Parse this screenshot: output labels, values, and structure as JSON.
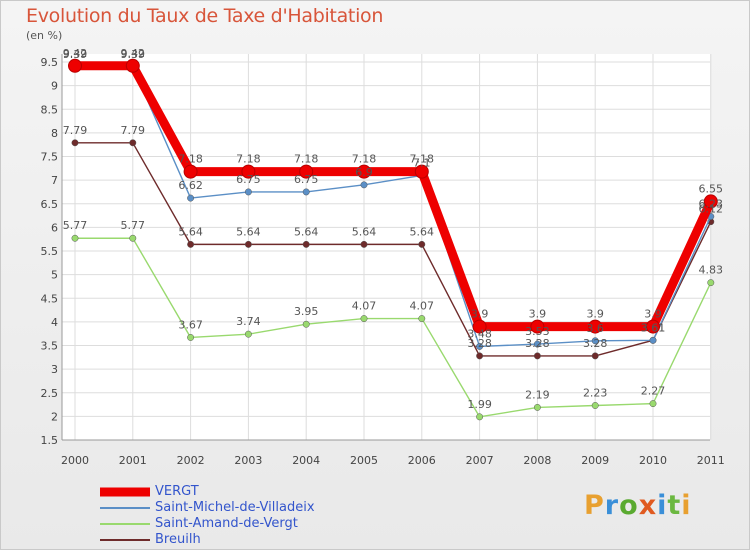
{
  "title": "Evolution du Taux de Taxe d'Habitation",
  "unit_label": "(en %)",
  "logo_text": "Proxiti",
  "chart_data": {
    "type": "line",
    "title": "Evolution du Taux de Taxe d'Habitation",
    "ylabel": "(en %)",
    "xlabel": "",
    "x": [
      "2000",
      "2001",
      "2002",
      "2003",
      "2004",
      "2005",
      "2006",
      "2007",
      "2008",
      "2009",
      "2010",
      "2011"
    ],
    "ylim": [
      1.5,
      9.5
    ],
    "yticks": [
      "1.5",
      "2",
      "2.5",
      "3",
      "3.5",
      "4",
      "4.5",
      "5",
      "5.5",
      "6",
      "6.5",
      "7",
      "7.5",
      "8",
      "8.5",
      "9",
      "9.5"
    ],
    "grid": true,
    "legend_position": "bottom-left",
    "series": [
      {
        "name": "VERGT",
        "color": "#ee0000",
        "values": [
          9.42,
          9.42,
          7.18,
          7.18,
          7.18,
          7.18,
          7.18,
          3.9,
          3.9,
          3.9,
          3.9,
          6.55
        ],
        "labels": [
          "9.42",
          "9.42",
          "7.18",
          "7.18",
          "7.18",
          "7.18",
          "7.18",
          "3.9",
          "3.9",
          "3.9",
          "3.9",
          "6.55"
        ]
      },
      {
        "name": "Saint-Michel-de-Villadeix",
        "color": "#5b8fc6",
        "values": [
          9.39,
          9.39,
          6.62,
          6.75,
          6.75,
          6.9,
          7.1,
          3.48,
          3.53,
          3.6,
          3.61,
          6.23
        ],
        "labels": [
          "9.39",
          "9.39",
          "6.62",
          "6.75",
          "6.75",
          "6.9",
          "7.1",
          "3.48",
          "3.53",
          "3.6",
          "3.61",
          "6.23"
        ]
      },
      {
        "name": "Saint-Amand-de-Vergt",
        "color": "#99d96e",
        "values": [
          5.77,
          5.77,
          3.67,
          3.74,
          3.95,
          4.07,
          4.07,
          1.99,
          2.19,
          2.23,
          2.27,
          4.83
        ],
        "labels": [
          "5.77",
          "5.77",
          "3.67",
          "3.74",
          "3.95",
          "4.07",
          "4.07",
          "1.99",
          "2.19",
          "2.23",
          "2.27",
          "4.83"
        ]
      },
      {
        "name": "Breuilh",
        "color": "#6e2b2b",
        "values": [
          7.79,
          7.79,
          5.64,
          5.64,
          5.64,
          5.64,
          5.64,
          3.28,
          3.28,
          3.28,
          3.61,
          6.12
        ],
        "labels": [
          "7.79",
          "7.79",
          "5.64",
          "5.64",
          "5.64",
          "5.64",
          "5.64",
          "3.28",
          "3.28",
          "3.28",
          "3.61",
          "6.12"
        ]
      }
    ]
  }
}
